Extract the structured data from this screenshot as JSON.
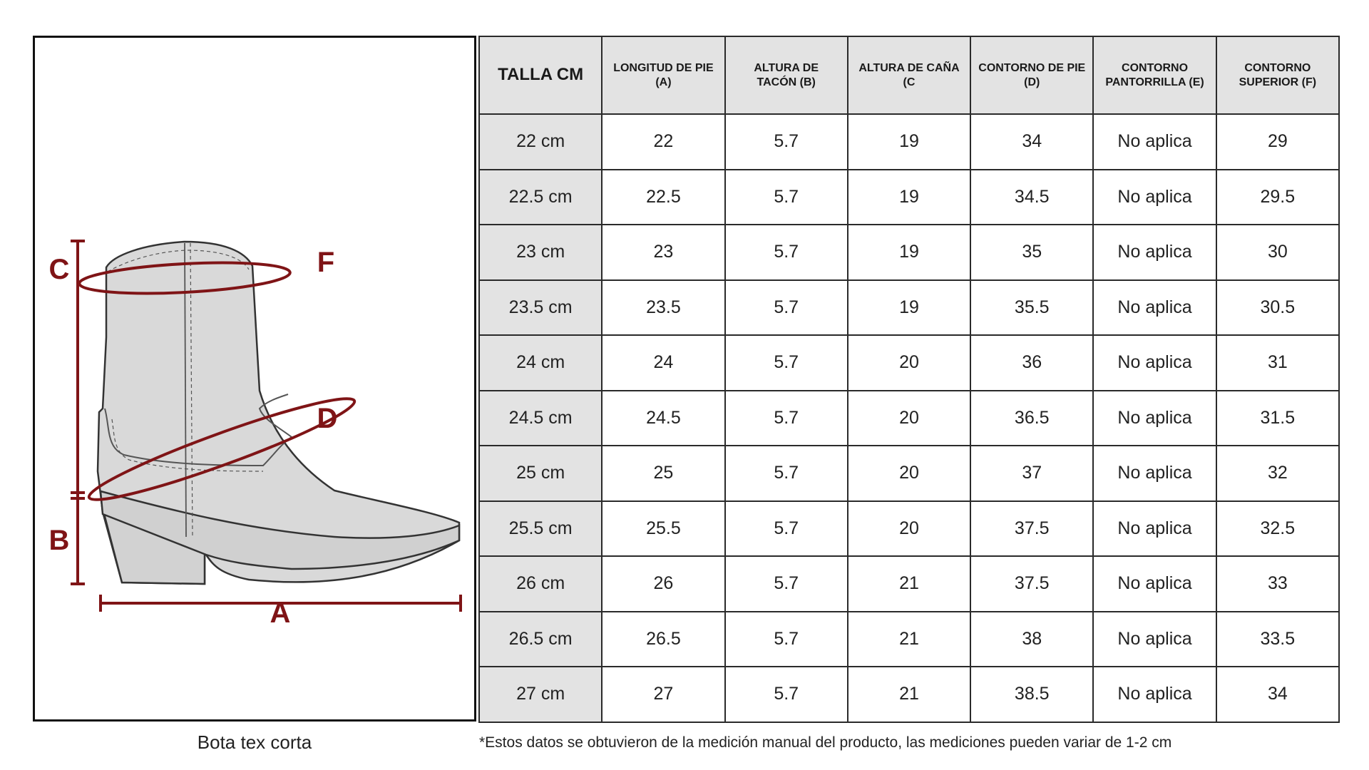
{
  "figure": {
    "labels": {
      "a": "A",
      "b": "B",
      "c": "C",
      "d": "D",
      "f": "F"
    },
    "accent_color": "#7f1416",
    "boot_fill": "#d9d9d9"
  },
  "caption": "Bota tex corta",
  "note": "*Estos datos se obtuvieron de la medición manual del producto, las mediciones pueden variar de 1-2 cm",
  "table": {
    "headers": [
      "TALLA CM",
      "LONGITUD DE PIE (A)",
      "ALTURA DE TACÓN (B)",
      "ALTURA DE CAÑA (C",
      "CONTORNO DE PIE (D)",
      "CONTORNO PANTORRILLA (E)",
      "CONTORNO SUPERIOR (F)"
    ],
    "rows": [
      [
        "22 cm",
        "22",
        "5.7",
        "19",
        "34",
        "No aplica",
        "29"
      ],
      [
        "22.5 cm",
        "22.5",
        "5.7",
        "19",
        "34.5",
        "No aplica",
        "29.5"
      ],
      [
        "23 cm",
        "23",
        "5.7",
        "19",
        "35",
        "No aplica",
        "30"
      ],
      [
        "23.5 cm",
        "23.5",
        "5.7",
        "19",
        "35.5",
        "No aplica",
        "30.5"
      ],
      [
        "24 cm",
        "24",
        "5.7",
        "20",
        "36",
        "No aplica",
        "31"
      ],
      [
        "24.5 cm",
        "24.5",
        "5.7",
        "20",
        "36.5",
        "No aplica",
        "31.5"
      ],
      [
        "25 cm",
        "25",
        "5.7",
        "20",
        "37",
        "No aplica",
        "32"
      ],
      [
        "25.5 cm",
        "25.5",
        "5.7",
        "20",
        "37.5",
        "No aplica",
        "32.5"
      ],
      [
        "26 cm",
        "26",
        "5.7",
        "21",
        "37.5",
        "No aplica",
        "33"
      ],
      [
        "26.5 cm",
        "26.5",
        "5.7",
        "21",
        "38",
        "No aplica",
        "33.5"
      ],
      [
        "27 cm",
        "27",
        "5.7",
        "21",
        "38.5",
        "No aplica",
        "34"
      ]
    ]
  }
}
